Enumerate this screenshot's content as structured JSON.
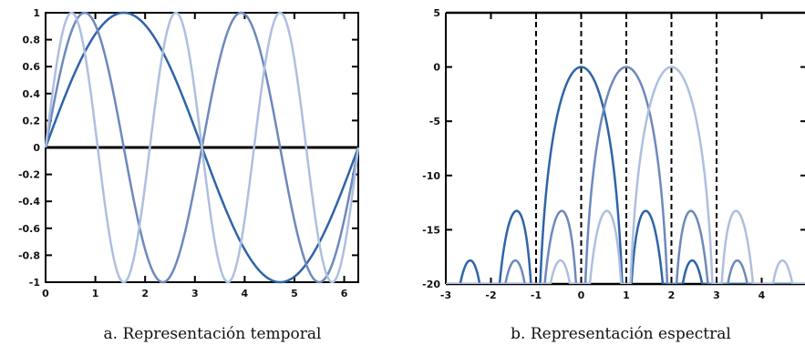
{
  "captions": {
    "left": "a.  Representación temporal",
    "right": "b.  Representación espectral"
  },
  "colors": {
    "dark": "#2f64a8",
    "medium": "#6d89bd",
    "light": "#aebfdf",
    "axis": "#000000"
  },
  "chart_data": [
    {
      "type": "line",
      "title": "",
      "xlabel": "",
      "ylabel": "",
      "xlim": [
        0,
        6.283
      ],
      "ylim": [
        -1,
        1
      ],
      "xticks": [
        0,
        1,
        2,
        3,
        4,
        5,
        6
      ],
      "yticks": [
        -1,
        -0.8,
        -0.6,
        -0.4,
        -0.2,
        0,
        0.2,
        0.4,
        0.6,
        0.8,
        1
      ],
      "ytick_labels": [
        "-1",
        "-0.8",
        "-0.6",
        "-0.4",
        "-0.2",
        "0",
        "0.2",
        "0.4",
        "0.6",
        "0.8",
        "1"
      ],
      "grid": false,
      "legend": "none",
      "series": [
        {
          "color": "dark",
          "function": "sin(1·x)",
          "frequency": 1
        },
        {
          "color": "medium",
          "function": "sin(2·x)",
          "frequency": 2
        },
        {
          "color": "light",
          "function": "sin(3·x)",
          "frequency": 3
        }
      ]
    },
    {
      "type": "line",
      "title": "",
      "xlabel": "",
      "ylabel": "",
      "xlim": [
        -3,
        5
      ],
      "ylim": [
        -20,
        5
      ],
      "xticks": [
        -3,
        -2,
        -1,
        0,
        1,
        2,
        3,
        4
      ],
      "yticks": [
        -20,
        -15,
        -10,
        -5,
        0,
        5
      ],
      "ytick_labels": [
        "-20",
        "-15",
        "-10",
        "-5",
        "0",
        "5"
      ],
      "vertical_dashed_lines": [
        -1,
        0,
        1,
        2,
        3
      ],
      "grid": false,
      "legend": "none",
      "floor": -20,
      "series": [
        {
          "color": "dark",
          "function": "20·log10|sinc(x)|",
          "center": 0
        },
        {
          "color": "medium",
          "function": "20·log10|sinc(x-1)|",
          "center": 1
        },
        {
          "color": "light",
          "function": "20·log10|sinc(x-2)|",
          "center": 2
        }
      ]
    }
  ]
}
